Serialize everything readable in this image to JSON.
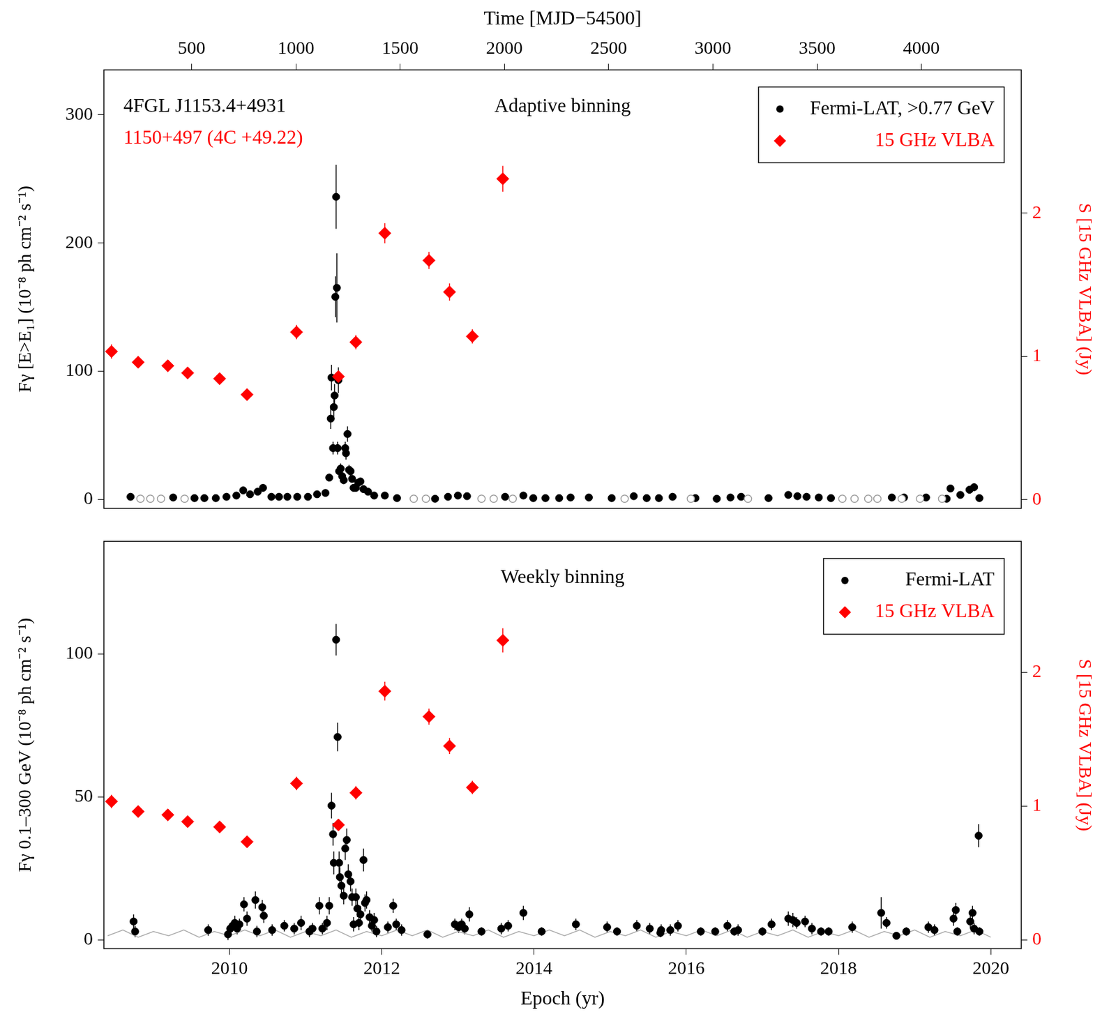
{
  "chart_data": [
    {
      "type": "scatter",
      "title": "Adaptive binning",
      "annotations": [
        {
          "text": "4FGL J1153.4+4931",
          "color": "#000000"
        },
        {
          "text": "1150+497 (4C +49.22)",
          "color": "#ff0000"
        }
      ],
      "x2label": "Time [MJD−54500]",
      "x2lim": [
        79,
        4479
      ],
      "x2ticks": [
        500,
        1000,
        1500,
        2000,
        2500,
        3000,
        3500,
        4000
      ],
      "xlim": [
        2008.35,
        2020.4
      ],
      "ylabel": "Fγ [E>E₁] (10⁻⁸ ph cm⁻² s⁻¹)",
      "ylim": [
        -7,
        335
      ],
      "yticks": [
        0,
        100,
        200,
        300
      ],
      "y2label": "S [15 GHz VLBA] (Jy)",
      "y2lim": [
        -0.06,
        3.0
      ],
      "y2ticks": [
        0,
        1,
        2
      ],
      "grid": false,
      "legend": "upper right",
      "series": [
        {
          "type": "scatter",
          "marker": "open_circle",
          "color": "#999999",
          "x": [
            2008.83,
            2008.96,
            2009.1,
            2009.41,
            2012.42,
            2012.58,
            2013.31,
            2013.47,
            2013.72,
            2015.19,
            2016.06,
            2016.81,
            2018.05,
            2018.21,
            2018.39,
            2018.51,
            2018.83,
            2019.07,
            2019.36
          ],
          "values": [
            0.5,
            0.5,
            0.5,
            0.5,
            0.5,
            0.5,
            0.5,
            0.5,
            0.5,
            0.5,
            0.5,
            0.5,
            0.5,
            0.5,
            0.5,
            0.5,
            0.5,
            0.5,
            0.5
          ]
        },
        {
          "name": "Fermi-LAT, >0.77 GeV",
          "type": "scatter",
          "marker": "circle",
          "color": "#000000",
          "x": [
            2008.7,
            2009.26,
            2009.54,
            2009.67,
            2009.82,
            2009.96,
            2010.09,
            2010.18,
            2010.27,
            2010.37,
            2010.44,
            2010.55,
            2010.65,
            2010.76,
            2010.89,
            2011.03,
            2011.15,
            2011.26,
            2011.31,
            2011.33,
            2011.34,
            2011.36,
            2011.37,
            2011.38,
            2011.39,
            2011.4,
            2011.41,
            2011.42,
            2011.43,
            2011.44,
            2011.46,
            2011.48,
            2011.5,
            2011.52,
            2011.53,
            2011.55,
            2011.57,
            2011.59,
            2011.61,
            2011.63,
            2011.66,
            2011.69,
            2011.72,
            2011.76,
            2011.82,
            2011.9,
            2012.04,
            2012.2,
            2012.7,
            2012.87,
            2013.0,
            2013.12,
            2013.62,
            2013.86,
            2013.99,
            2014.15,
            2014.33,
            2014.48,
            2014.72,
            2015.02,
            2015.31,
            2015.48,
            2015.64,
            2015.82,
            2016.12,
            2016.4,
            2016.58,
            2016.72,
            2017.08,
            2017.34,
            2017.46,
            2017.58,
            2017.74,
            2017.9,
            2018.7,
            2018.86,
            2019.15,
            2019.42,
            2019.47,
            2019.6,
            2019.72,
            2019.78,
            2019.85
          ],
          "values": [
            2,
            1.5,
            1,
            1,
            1,
            2,
            3,
            7,
            4,
            6,
            9,
            2,
            2,
            2,
            2,
            2,
            4,
            5,
            17,
            63,
            95,
            40,
            72,
            81,
            158,
            236,
            165,
            40,
            93,
            22,
            24,
            18,
            15,
            40,
            36,
            51,
            23,
            22,
            16,
            9,
            9,
            13,
            14,
            8,
            6,
            3,
            3,
            1,
            0.5,
            2,
            3,
            2.5,
            2,
            3,
            1,
            1,
            1,
            1.5,
            1.5,
            1,
            2.5,
            1,
            1,
            2,
            1,
            0.5,
            1.5,
            2,
            1,
            3.5,
            2.5,
            2,
            1.5,
            1,
            1.5,
            1.5,
            1.5,
            0.5,
            8.5,
            3.5,
            7.5,
            9.5,
            1
          ],
          "errors": [
            1,
            1,
            1,
            1,
            1,
            1,
            1,
            1.5,
            1,
            1.5,
            1.5,
            1,
            1,
            1,
            1,
            1,
            1,
            1.5,
            3,
            8,
            10,
            5,
            8,
            9,
            16,
            25,
            27,
            5,
            10,
            4,
            4,
            3,
            3,
            5,
            5,
            6,
            4,
            4,
            3,
            2,
            2,
            2,
            2,
            2,
            1.5,
            1,
            1,
            1,
            1,
            1,
            1,
            1,
            1,
            1,
            1,
            1,
            1,
            1,
            1,
            1,
            1,
            1,
            1,
            1,
            1,
            1,
            1,
            1,
            1,
            1,
            1,
            1,
            1,
            1,
            1,
            1,
            1,
            1,
            1.5,
            1,
            1.5,
            1.5,
            1
          ]
        },
        {
          "name": "15 GHz VLBA",
          "type": "scatter",
          "marker": "diamond",
          "color": "#ff0000",
          "axis": "y2",
          "x": [
            2008.45,
            2008.8,
            2009.19,
            2009.45,
            2009.87,
            2010.23,
            2010.88,
            2011.43,
            2011.66,
            2012.04,
            2012.62,
            2012.89,
            2013.19,
            2013.59
          ],
          "values": [
            1.035,
            0.96,
            0.935,
            0.885,
            0.845,
            0.734,
            1.17,
            0.86,
            1.1,
            1.86,
            1.67,
            1.45,
            1.14,
            2.24
          ],
          "errors": [
            0.05,
            0.04,
            0.04,
            0.04,
            0.04,
            0.04,
            0.05,
            0.04,
            0.05,
            0.07,
            0.06,
            0.06,
            0.05,
            0.09
          ]
        }
      ]
    },
    {
      "type": "scatter",
      "title": "Weekly binning",
      "xlabel": "Epoch (yr)",
      "xlim": [
        2008.35,
        2020.4
      ],
      "xticks": [
        2010,
        2012,
        2014,
        2016,
        2018,
        2020
      ],
      "ylabel": "Fγ 0.1–300 GeV (10⁻⁸ ph cm⁻² s⁻¹)",
      "ylim": [
        -3,
        139.4
      ],
      "yticks": [
        0,
        50,
        100
      ],
      "y2label": "S [15 GHz VLBA] (Jy)",
      "y2lim": [
        -0.065,
        2.98
      ],
      "y2ticks": [
        0,
        1,
        2
      ],
      "grid": false,
      "legend": "upper right",
      "series": [
        {
          "type": "line",
          "marker": "none",
          "line_style": "solid",
          "color": "#aaaaaa",
          "x": [
            2008.4,
            2008.6,
            2008.8,
            2009.0,
            2009.2,
            2009.4,
            2009.6,
            2009.8,
            2010.0,
            2010.2,
            2010.4,
            2010.6,
            2010.8,
            2011.0,
            2011.2,
            2011.4,
            2011.6,
            2011.8,
            2012.0,
            2012.2,
            2012.4,
            2012.6,
            2012.8,
            2013.0,
            2013.2,
            2013.4,
            2013.6,
            2013.8,
            2014.0,
            2014.2,
            2014.4,
            2014.6,
            2014.8,
            2015.0,
            2015.2,
            2015.4,
            2015.6,
            2015.8,
            2016.0,
            2016.2,
            2016.4,
            2016.6,
            2016.8,
            2017.0,
            2017.2,
            2017.4,
            2017.6,
            2017.8,
            2018.0,
            2018.2,
            2018.4,
            2018.6,
            2018.8,
            2019.0,
            2019.2,
            2019.4,
            2019.6,
            2019.8,
            2020.0
          ],
          "values": [
            1.5,
            3.5,
            1,
            3,
            1.5,
            3.5,
            1,
            3,
            1.5,
            3.5,
            1.5,
            3.5,
            1,
            3,
            1.5,
            3.5,
            1,
            3,
            1.5,
            3.5,
            1.5,
            3.5,
            1,
            3,
            1.5,
            3.5,
            1,
            3,
            1.5,
            3.5,
            1.5,
            3.5,
            1,
            3,
            1.5,
            3.5,
            1,
            3,
            1.5,
            3.5,
            1.5,
            3.5,
            1,
            3,
            1.5,
            3.5,
            1,
            3,
            1.5,
            3.5,
            1,
            3,
            1.5,
            3.5,
            1,
            3,
            1.5,
            3.5,
            1
          ]
        },
        {
          "name": "Fermi-LAT",
          "type": "scatter",
          "marker": "circle",
          "color": "#000000",
          "x": [
            2008.74,
            2008.76,
            2009.72,
            2009.98,
            2010.01,
            2010.04,
            2010.07,
            2010.1,
            2010.13,
            2010.19,
            2010.23,
            2010.34,
            2010.36,
            2010.43,
            2010.45,
            2010.56,
            2010.72,
            2010.85,
            2010.94,
            2011.05,
            2011.09,
            2011.18,
            2011.22,
            2011.28,
            2011.31,
            2011.34,
            2011.36,
            2011.37,
            2011.4,
            2011.42,
            2011.44,
            2011.45,
            2011.47,
            2011.5,
            2011.52,
            2011.54,
            2011.56,
            2011.59,
            2011.61,
            2011.63,
            2011.66,
            2011.68,
            2011.7,
            2011.72,
            2011.76,
            2011.78,
            2011.8,
            2011.84,
            2011.87,
            2011.9,
            2011.93,
            2012.08,
            2012.15,
            2012.19,
            2012.26,
            2012.6,
            2012.96,
            2013.01,
            2013.05,
            2013.09,
            2013.15,
            2013.31,
            2013.57,
            2013.66,
            2013.86,
            2014.1,
            2014.55,
            2014.96,
            2015.09,
            2015.35,
            2015.52,
            2015.66,
            2015.67,
            2015.79,
            2015.89,
            2016.19,
            2016.38,
            2016.54,
            2016.63,
            2016.68,
            2017.0,
            2017.12,
            2017.34,
            2017.4,
            2017.45,
            2017.56,
            2017.65,
            2017.77,
            2017.87,
            2018.18,
            2018.56,
            2018.63,
            2018.76,
            2018.89,
            2019.18,
            2019.26,
            2019.51,
            2019.54,
            2019.56,
            2019.73,
            2019.76,
            2019.78,
            2019.84,
            2019.85
          ],
          "values": [
            6.5,
            3,
            3.5,
            2,
            4,
            5,
            6,
            4,
            5.5,
            12.5,
            7.5,
            14,
            3,
            11.5,
            8.5,
            3.5,
            5,
            4,
            6,
            3,
            4,
            12,
            4,
            6,
            12,
            47,
            37,
            27,
            105,
            71,
            27,
            22,
            19,
            15.5,
            32,
            35,
            23,
            20.5,
            15,
            5.5,
            15,
            11,
            6,
            9,
            28,
            13,
            14,
            8,
            5,
            7,
            3,
            4.5,
            12,
            5.5,
            3.5,
            2,
            5.5,
            4.5,
            5.5,
            4,
            9,
            3,
            4,
            5,
            9.5,
            3,
            5.5,
            4.5,
            3,
            5,
            4,
            2.5,
            3.5,
            3.5,
            5,
            3,
            3,
            5,
            3,
            3.5,
            3,
            5.5,
            7.5,
            7,
            6,
            6.5,
            4,
            3,
            3,
            4.5,
            9.5,
            6,
            1.5,
            3,
            4.5,
            3.5,
            7.5,
            10.5,
            3,
            6.5,
            9.5,
            4,
            36.5,
            3
          ],
          "errors": [
            2.5,
            2,
            2,
            2,
            2,
            2,
            2.5,
            2,
            2,
            2.5,
            2.5,
            3,
            2,
            2.5,
            2.5,
            2,
            2,
            2,
            2.5,
            2,
            2,
            3,
            2,
            2.5,
            3,
            4.5,
            4,
            4,
            5.5,
            5,
            4,
            3.5,
            3.5,
            3,
            4,
            4,
            3.5,
            3.5,
            3,
            2.5,
            3,
            3,
            2.5,
            3,
            4,
            3,
            3,
            2.5,
            2,
            2.5,
            2,
            2,
            2.5,
            2,
            2,
            1.5,
            2,
            2,
            2,
            2,
            2.5,
            1.5,
            2,
            2,
            2.5,
            1.5,
            2,
            2,
            1.5,
            2,
            2,
            1.5,
            2,
            2,
            2,
            1.5,
            1.5,
            2,
            1.5,
            2,
            1.5,
            2,
            2.5,
            2.5,
            2,
            2,
            2,
            1.5,
            1.5,
            2,
            5.5,
            2,
            1,
            1.5,
            2,
            2,
            2.5,
            2.5,
            1.5,
            2.5,
            2.5,
            2,
            4,
            1.5
          ]
        },
        {
          "name": "15 GHz VLBA",
          "type": "scatter",
          "marker": "diamond",
          "color": "#ff0000",
          "axis": "y2",
          "x": [
            2008.45,
            2008.8,
            2009.19,
            2009.45,
            2009.87,
            2010.23,
            2010.88,
            2011.43,
            2011.66,
            2012.04,
            2012.62,
            2012.89,
            2013.19,
            2013.59
          ],
          "values": [
            1.035,
            0.96,
            0.935,
            0.885,
            0.845,
            0.734,
            1.17,
            0.86,
            1.1,
            1.86,
            1.67,
            1.45,
            1.14,
            2.24
          ],
          "errors": [
            0.05,
            0.04,
            0.04,
            0.04,
            0.04,
            0.04,
            0.05,
            0.04,
            0.05,
            0.07,
            0.06,
            0.06,
            0.05,
            0.09
          ]
        }
      ]
    }
  ]
}
